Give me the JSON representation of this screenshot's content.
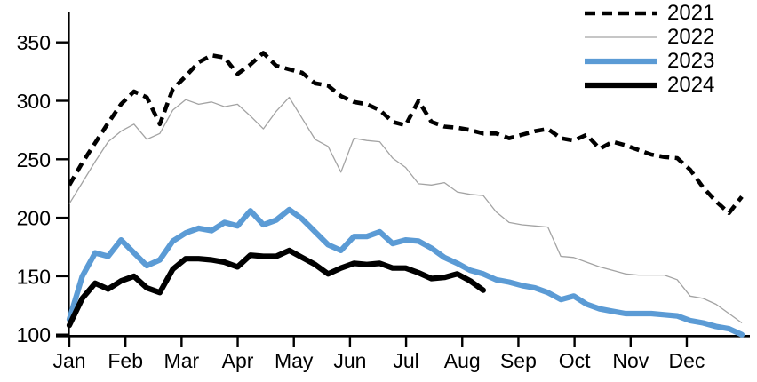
{
  "chart_data": {
    "type": "line",
    "title": "",
    "x_axis": {
      "granularity": "weekly",
      "tick_labels": [
        "Jan",
        "Feb",
        "Mar",
        "Apr",
        "May",
        "Jun",
        "Jul",
        "Aug",
        "Sep",
        "Oct",
        "Nov",
        "Dec"
      ]
    },
    "y_axis": {
      "min": 100,
      "max": 350,
      "step": 50,
      "ticks": [
        100,
        150,
        200,
        250,
        300,
        350
      ]
    },
    "grid": false,
    "legend": {
      "position": "top-right",
      "entries": [
        "2021",
        "2022",
        "2023",
        "2024"
      ]
    },
    "series": [
      {
        "name": "2021",
        "color": "#000000",
        "line_style": "dashed",
        "line_width": 4.6,
        "values": [
          228,
          247,
          264,
          281,
          297,
          308,
          303,
          280,
          310,
          321,
          333,
          339,
          337,
          323,
          331,
          341,
          330,
          327,
          324,
          315,
          313,
          304,
          299,
          297,
          292,
          282,
          279,
          300,
          282,
          278,
          277,
          275,
          272,
          272,
          268,
          271,
          274,
          276,
          268,
          266,
          271,
          259,
          265,
          262,
          258,
          254,
          252,
          251,
          241,
          226,
          214,
          204,
          218
        ]
      },
      {
        "name": "2022",
        "color": "#a3a3a3",
        "line_style": "solid",
        "line_width": 1.3,
        "values": [
          212,
          230,
          248,
          265,
          274,
          280,
          267,
          272,
          292,
          301,
          297,
          299,
          295,
          297,
          287,
          276,
          291,
          303,
          285,
          267,
          261,
          239,
          268,
          266,
          265,
          251,
          243,
          229,
          228,
          230,
          222,
          220,
          219,
          205,
          196,
          194,
          193,
          192,
          167,
          166,
          162,
          158,
          155,
          152,
          151,
          151,
          151,
          147,
          133,
          131,
          126,
          118,
          110
        ]
      },
      {
        "name": "2023",
        "color": "#5b9bd5",
        "line_style": "solid",
        "line_width": 6.2,
        "values": [
          113,
          150,
          170,
          167,
          181,
          170,
          159,
          164,
          180,
          187,
          191,
          189,
          196,
          193,
          206,
          194,
          198,
          207,
          199,
          188,
          177,
          172,
          184,
          184,
          188,
          178,
          181,
          180,
          174,
          166,
          161,
          155,
          152,
          147,
          145,
          142,
          140,
          136,
          130,
          133,
          126,
          122,
          120,
          118,
          118,
          118,
          117,
          116,
          112,
          110,
          107,
          105,
          100
        ]
      },
      {
        "name": "2024",
        "color": "#000000",
        "line_style": "solid",
        "line_width": 6.2,
        "values": [
          108,
          131,
          144,
          139,
          146,
          150,
          140,
          136,
          156,
          165,
          165,
          164,
          162,
          158,
          168,
          167,
          167,
          172,
          166,
          160,
          152,
          157,
          161,
          160,
          161,
          157,
          157,
          153,
          148,
          149,
          152,
          146,
          138
        ]
      }
    ]
  }
}
